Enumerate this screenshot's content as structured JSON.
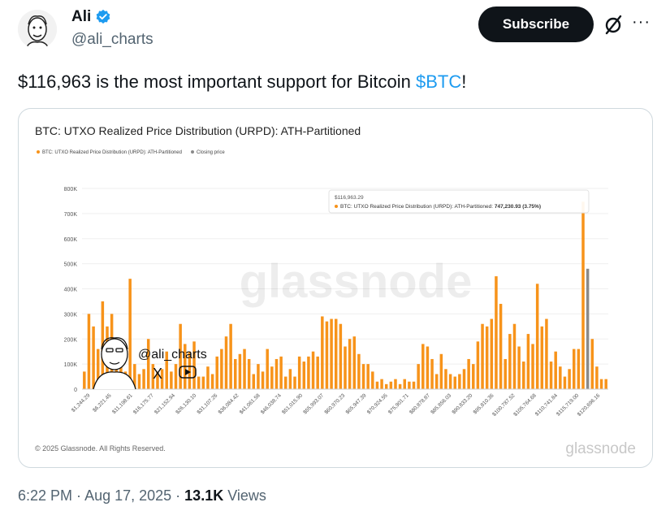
{
  "author": {
    "name": "Ali",
    "handle": "@ali_charts",
    "verified": true
  },
  "actions": {
    "subscribe_label": "Subscribe",
    "grok_icon": "slashed-circle-icon",
    "more_icon": "ellipsis-icon",
    "more_label": "···"
  },
  "tweet": {
    "text": "$116,963 is the most important support for Bitcoin ",
    "cashtag": "$BTC",
    "text_end": "!"
  },
  "card": {
    "title": "BTC: UTXO Realized Price Distribution (URPD): ATH-Partitioned",
    "legend": [
      {
        "label": "BTC: UTXO Realized Price Distribution (URPD): ATH-Partitioned",
        "color": "#f7931a"
      },
      {
        "label": "Closing price",
        "color": "#8a8a8a"
      }
    ],
    "watermark": "glassnode",
    "overlay_handle": "@ali_charts",
    "overlay_icons": [
      "cartoon-avatar-icon",
      "x-logo-icon",
      "youtube-icon"
    ],
    "x_logo": "X",
    "tooltip": {
      "header": "$116,963.29",
      "series": "BTC: UTXO Realized Price Distribution (URPD): ATH-Partitioned:",
      "value": "747,230.93 (3.75%)"
    },
    "footer_copyright": "© 2025 Glassnode. All Rights Reserved.",
    "footer_logo": "glassnode"
  },
  "chart_data": {
    "type": "bar",
    "title": "BTC: UTXO Realized Price Distribution (URPD): ATH-Partitioned",
    "yticks": [
      "0",
      "100K",
      "200K",
      "300K",
      "400K",
      "500K",
      "600K",
      "700K",
      "800K"
    ],
    "ylim": [
      0,
      800000
    ],
    "xticks": [
      "$1,244.29",
      "$6,221.45",
      "$11,198.61",
      "$16,175.77",
      "$21,152.94",
      "$26,130.10",
      "$31,107.26",
      "$36,084.42",
      "$41,061.58",
      "$46,038.74",
      "$51,015.90",
      "$55,993.07",
      "$60,970.23",
      "$65,947.39",
      "$70,924.55",
      "$75,901.71",
      "$80,878.87",
      "$85,856.03",
      "$90,833.20",
      "$95,810.36",
      "$100,787.52",
      "$105,764.68",
      "$110,741.84",
      "$115,719.00",
      "$120,696.16"
    ],
    "values": [
      70000,
      300000,
      250000,
      160000,
      350000,
      250000,
      300000,
      120000,
      90000,
      70000,
      440000,
      100000,
      60000,
      80000,
      200000,
      100000,
      70000,
      80000,
      150000,
      70000,
      100000,
      260000,
      180000,
      150000,
      190000,
      50000,
      50000,
      90000,
      60000,
      130000,
      160000,
      210000,
      260000,
      120000,
      140000,
      160000,
      120000,
      60000,
      100000,
      70000,
      160000,
      90000,
      120000,
      130000,
      50000,
      80000,
      50000,
      130000,
      110000,
      130000,
      150000,
      130000,
      290000,
      270000,
      280000,
      280000,
      260000,
      170000,
      200000,
      210000,
      140000,
      100000,
      100000,
      70000,
      30000,
      40000,
      20000,
      30000,
      40000,
      20000,
      40000,
      30000,
      30000,
      100000,
      180000,
      170000,
      120000,
      60000,
      140000,
      80000,
      60000,
      50000,
      60000,
      80000,
      120000,
      100000,
      190000,
      260000,
      250000,
      280000,
      450000,
      340000,
      120000,
      220000,
      260000,
      170000,
      110000,
      220000,
      180000,
      420000,
      250000,
      280000,
      110000,
      150000,
      90000,
      50000,
      80000,
      160000,
      160000,
      747230.93,
      480000,
      200000,
      90000,
      40000,
      40000
    ],
    "highlight_index": 109,
    "closing_index": 110,
    "series_color": "#f7931a",
    "closing_color": "#8a8a8a",
    "grid": true
  },
  "footer": {
    "time": "6:22 PM",
    "sep1": " · ",
    "date": "Aug 17, 2025",
    "sep2": " · ",
    "views": "13.1K",
    "views_label": " Views"
  }
}
